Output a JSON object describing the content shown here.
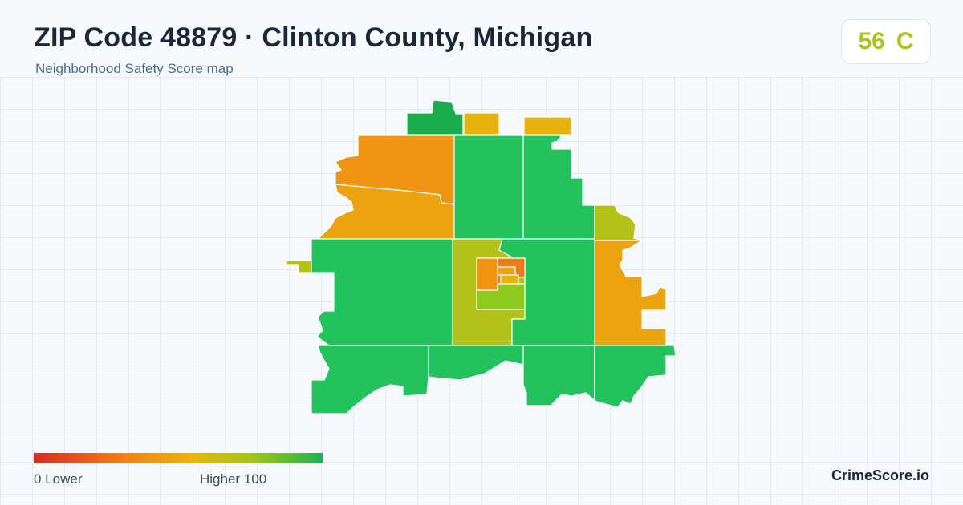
{
  "header": {
    "title": "ZIP Code 48879 · Clinton County, Michigan",
    "subtitle": "Neighborhood Safety Score map"
  },
  "score_badge": {
    "score": "56",
    "grade": "C",
    "color": "#a8c51c"
  },
  "legend": {
    "min_label": "0  Lower",
    "max_label": "Higher  100",
    "colors": [
      "#d62c25",
      "#f0841a",
      "#e8b50c",
      "#a6c41a",
      "#1db24f"
    ]
  },
  "brand": "CrimeScore.io",
  "palette": {
    "dark_green": "#1aab4d",
    "green": "#22c25c",
    "yellow_green": "#b3c218",
    "lime": "#8fcb1e",
    "gold": "#e7b20d",
    "amber": "#eba30f",
    "orange": "#f19413",
    "deep_orange": "#f07a1a"
  }
}
